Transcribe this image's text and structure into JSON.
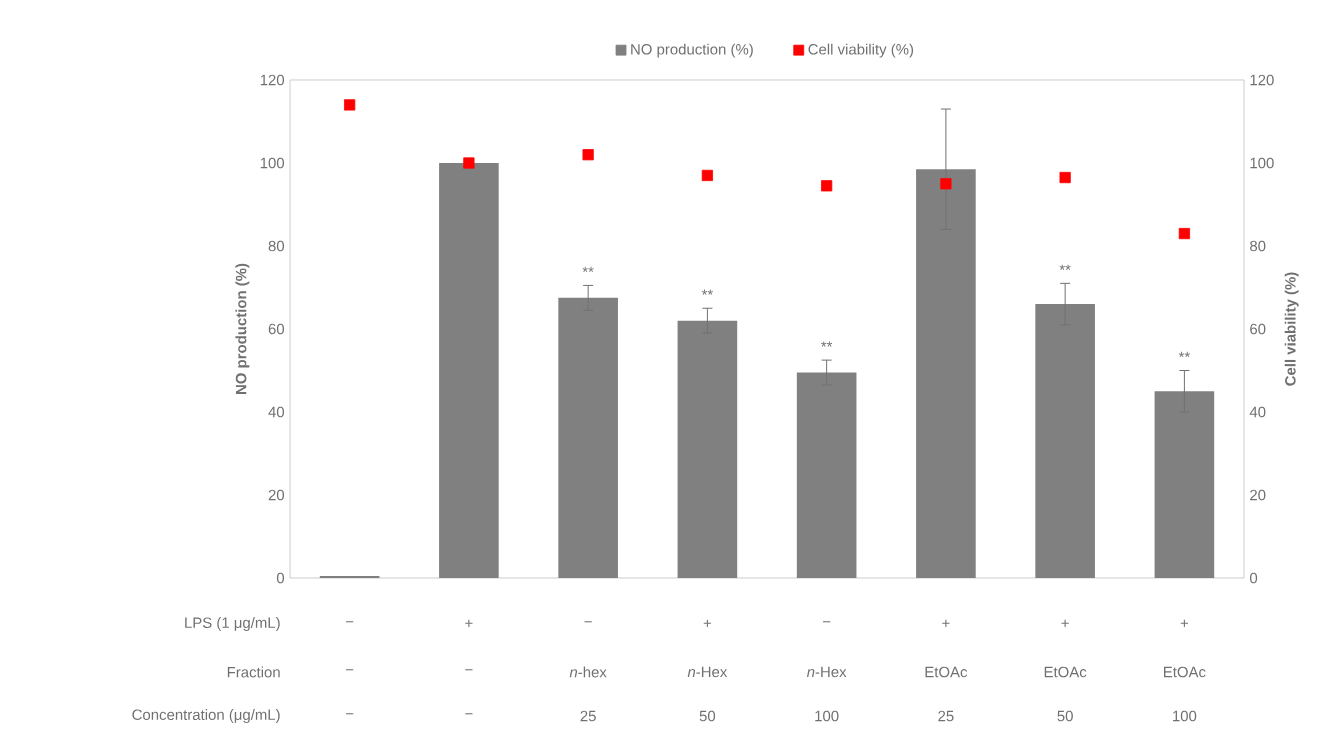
{
  "chart_data": {
    "type": "bar",
    "categories": [
      null,
      null,
      null,
      null,
      null,
      null,
      null,
      null
    ],
    "series": [
      {
        "name": "NO production (%)",
        "color": "#808080",
        "values": [
          0.5,
          100,
          67.5,
          62,
          49.5,
          98.5,
          66,
          45
        ],
        "errors": [
          null,
          null,
          3,
          3,
          3,
          14.5,
          5,
          5
        ],
        "value_labels": [
          null,
          null,
          "**",
          "**",
          "**",
          null,
          "**",
          "**"
        ]
      },
      {
        "name": "Cell viability (%)",
        "type": "scatter",
        "axis": "y2",
        "color": "#ff0000",
        "marker": "square",
        "values": [
          114,
          100,
          102,
          97,
          94.5,
          95,
          96.5,
          83
        ]
      }
    ],
    "ylabel": "NO production (%)",
    "y2label": "Cell viability (%)",
    "ylim": [
      0,
      120
    ],
    "yticks": [
      0,
      20,
      40,
      60,
      80,
      100,
      120
    ],
    "y2lim": [
      0,
      120
    ],
    "y2ticks": [
      0,
      20,
      40,
      60,
      80,
      100,
      120
    ],
    "legend": "top",
    "annotations": [
      "LPS (1 μg/mL)",
      "−",
      "+",
      "−",
      "+",
      "−",
      "+",
      "+",
      "+",
      "Fraction",
      "−",
      "−",
      "*n*-hex",
      "*n*-Hex",
      "*n*-Hex",
      "EtOAc",
      "EtOAc",
      "EtOAc",
      "Concentration (μg/mL)",
      "−",
      "−",
      "25",
      "50",
      "100",
      "25",
      "50",
      "100"
    ]
  }
}
